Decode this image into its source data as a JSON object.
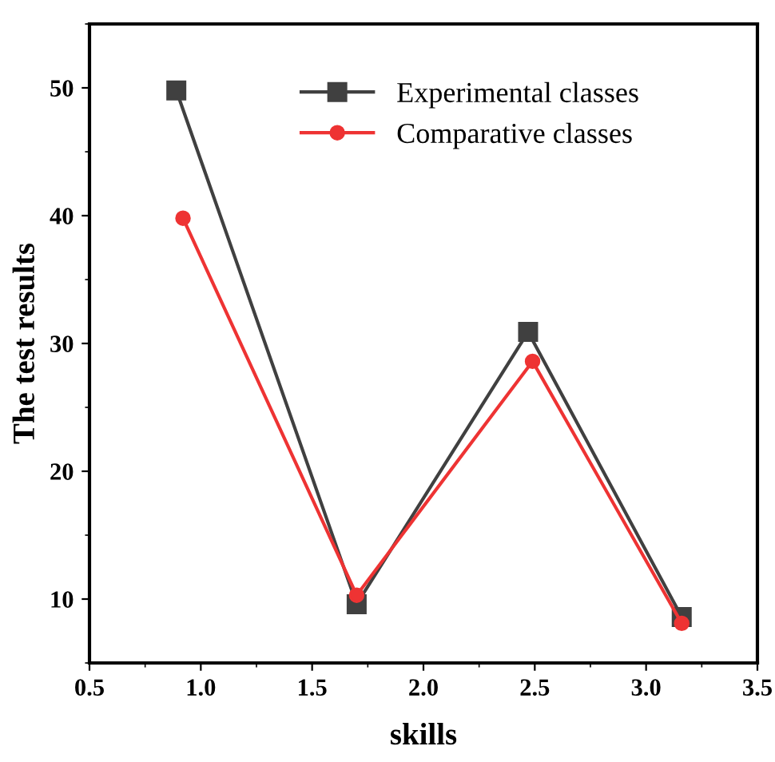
{
  "chart_data": {
    "type": "line",
    "xlabel": "skills",
    "ylabel": "The test results",
    "xlim": [
      0.5,
      3.5
    ],
    "xticks": [
      0.5,
      {
        "value": 1,
        "label": "1.0"
      },
      1.5,
      {
        "value": 2,
        "label": "2.0"
      },
      2.5,
      {
        "value": 3,
        "label": "3.0"
      },
      3.5
    ],
    "ylim": [
      5,
      55
    ],
    "yticks": [
      10,
      20,
      30,
      40,
      50
    ],
    "legend": "top",
    "grid": false,
    "series": [
      {
        "name": "Experimental classes",
        "color": "#404040",
        "marker": "square",
        "x": [
          0.89,
          1.7,
          2.47,
          3.16
        ],
        "values": [
          49.8,
          9.6,
          30.9,
          8.6
        ]
      },
      {
        "name": "Comparative classes",
        "color": "#ee3333",
        "marker": "circle",
        "x": [
          0.92,
          1.7,
          2.49,
          3.16
        ],
        "values": [
          39.8,
          10.3,
          28.6,
          8.1
        ]
      }
    ]
  }
}
